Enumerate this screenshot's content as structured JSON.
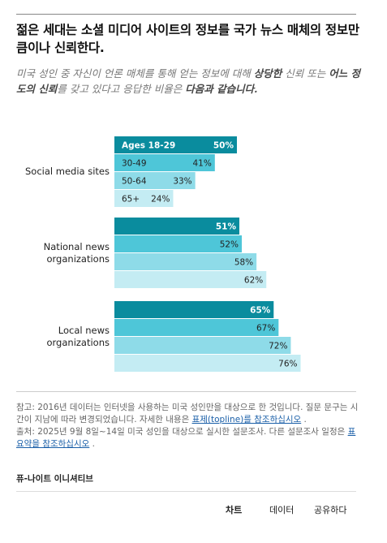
{
  "header": {
    "title": "젊은 세대는 소셜 미디어 사이트의 정보를 국가 뉴스 매체의 정보만큼이나 신뢰한다.",
    "subtitle_parts": {
      "p1": "미국 성인 중 자신이 언론 매체를 통해 얻는 정보에 대해 ",
      "b1": "상당한",
      "p2": " 신뢰 또는 ",
      "b2": "어느 정도의 신뢰",
      "p3": "를 갖고 있다고 응답한 비율은 ",
      "b3": "다음과 같습니다."
    }
  },
  "chart_data": {
    "type": "bar",
    "orientation": "horizontal",
    "unit": "%",
    "age_groups": [
      "Ages 18-29",
      "30-49",
      "50-64",
      "65+"
    ],
    "groups": [
      {
        "name": "Social media sites",
        "values": [
          50,
          41,
          33,
          24
        ]
      },
      {
        "name": "National news organizations",
        "values": [
          51,
          52,
          58,
          62
        ]
      },
      {
        "name": "Local news organizations",
        "values": [
          65,
          67,
          72,
          76
        ]
      }
    ],
    "colors": [
      "#0a8c9e",
      "#4ec6d8",
      "#8edbe8",
      "#c4ecf3"
    ]
  },
  "footer": {
    "note_parts": {
      "n1": "참고: 2016년 데이터는 인터넷을 사용하는 미국 성인만을 대상으로 한 것입니다. 질문 문구는 시간이 지남에 따라 변경되었습니다. 자세한 내용은 ",
      "link1": "표제(topline)를 참조하십시오",
      "n2": " .",
      "n3": "출처: 2025년 9월 8일~14일 미국 성인을 대상으로 실시한 설문조사. 다른 설문조사 일정은 ",
      "link2": "표 요약을 참조하십시오",
      "n4": " ."
    },
    "brand": "퓨-나이트 이니셔티브",
    "tabs": {
      "chart": "차트",
      "data": "데이터",
      "share": "공유하다"
    }
  }
}
